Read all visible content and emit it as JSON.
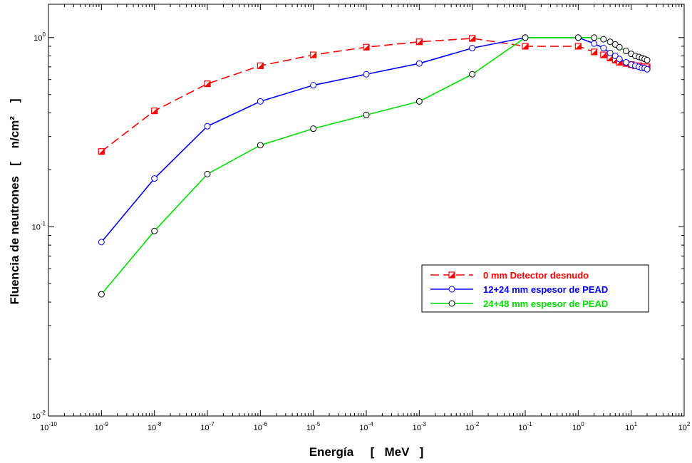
{
  "chart_data": {
    "type": "line",
    "title": "",
    "xlabel": "Energía     [   MeV   ]",
    "ylabel": "Fluencia de neutrones   [    n/cm²    ]",
    "xscale": "log",
    "yscale": "log",
    "xlim": [
      1e-10,
      100
    ],
    "ylim": [
      0.01,
      1.5
    ],
    "x_ticks": [
      {
        "base": "10",
        "exp": "-10",
        "value": 1e-10
      },
      {
        "base": "10",
        "exp": "-9",
        "value": 1e-09
      },
      {
        "base": "10",
        "exp": "-8",
        "value": 1e-08
      },
      {
        "base": "10",
        "exp": "-7",
        "value": 1e-07
      },
      {
        "base": "10",
        "exp": "-6",
        "value": 1e-06
      },
      {
        "base": "10",
        "exp": "-5",
        "value": 1e-05
      },
      {
        "base": "10",
        "exp": "-4",
        "value": 0.0001
      },
      {
        "base": "10",
        "exp": "-3",
        "value": 0.001
      },
      {
        "base": "10",
        "exp": "-2",
        "value": 0.01
      },
      {
        "base": "10",
        "exp": "-1",
        "value": 0.1
      },
      {
        "base": "10",
        "exp": "0",
        "value": 1
      },
      {
        "base": "10",
        "exp": "1",
        "value": 10
      },
      {
        "base": "10",
        "exp": "2",
        "value": 100
      }
    ],
    "y_ticks": [
      {
        "base": "10",
        "exp": "-2",
        "value": 0.01
      },
      {
        "base": "10",
        "exp": "-1",
        "value": 0.1
      },
      {
        "base": "10",
        "exp": "0",
        "value": 1
      }
    ],
    "grid": false,
    "legend_position": "right",
    "series": [
      {
        "name": "0 mm Detector  desnudo",
        "color": "#ff0000",
        "line_style": "dashed",
        "marker": "half-filled-square",
        "x": [
          1e-09,
          1e-08,
          1e-07,
          1e-06,
          1e-05,
          0.0001,
          0.001,
          0.01,
          0.1,
          1,
          2,
          3,
          4,
          5,
          6,
          8,
          10,
          12,
          14,
          16,
          18,
          20
        ],
        "y": [
          0.25,
          0.41,
          0.57,
          0.71,
          0.81,
          0.89,
          0.95,
          0.99,
          0.9,
          0.9,
          0.84,
          0.81,
          0.78,
          0.76,
          0.74,
          0.73,
          0.72,
          0.71,
          0.71,
          0.7,
          0.7,
          0.7
        ]
      },
      {
        "name": "12+24 mm espesor de PEAD",
        "color": "#0000ff",
        "line_style": "solid",
        "marker": "open-circle",
        "x": [
          1e-09,
          1e-08,
          1e-07,
          1e-06,
          1e-05,
          0.0001,
          0.001,
          0.01,
          0.1,
          1,
          2,
          3,
          4,
          5,
          6,
          8,
          10,
          12,
          14,
          16,
          18,
          20
        ],
        "y": [
          0.083,
          0.18,
          0.34,
          0.46,
          0.56,
          0.64,
          0.73,
          0.88,
          1.0,
          1.0,
          0.93,
          0.88,
          0.83,
          0.8,
          0.77,
          0.74,
          0.72,
          0.71,
          0.7,
          0.69,
          0.69,
          0.68
        ]
      },
      {
        "name": "24+48 mm espesor de PEAD",
        "color": "#00dd00",
        "line_style": "solid",
        "marker": "open-circle",
        "x": [
          1e-09,
          1e-08,
          1e-07,
          1e-06,
          1e-05,
          0.0001,
          0.001,
          0.01,
          0.1,
          1,
          2,
          3,
          4,
          5,
          6,
          8,
          10,
          12,
          14,
          16,
          18,
          20
        ],
        "y": [
          0.044,
          0.095,
          0.19,
          0.27,
          0.33,
          0.39,
          0.46,
          0.64,
          1.0,
          1.0,
          1.0,
          0.98,
          0.95,
          0.92,
          0.89,
          0.85,
          0.82,
          0.8,
          0.79,
          0.78,
          0.77,
          0.76
        ]
      }
    ]
  }
}
